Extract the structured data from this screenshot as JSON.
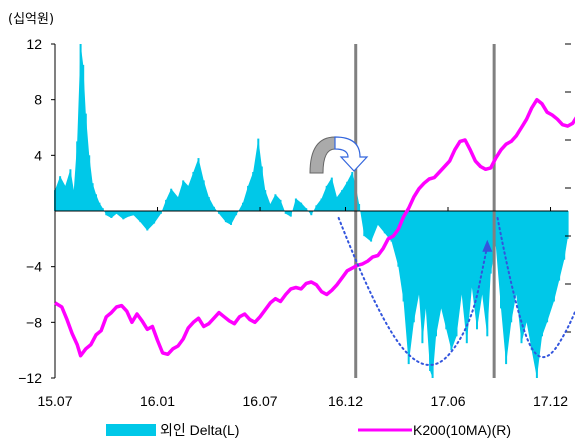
{
  "unit_label": "(십억원)",
  "colors": {
    "delta_fill": "#00C8E8",
    "k200_line": "#FF00FF",
    "event_line": "#808080",
    "dotted_curve": "#3355DD",
    "arrow_fill": "#AAAAAA",
    "arrow_outline": "#3366DD"
  },
  "chart_data": {
    "type": "bar+line",
    "x_tick_labels": [
      "15.07",
      "16.01",
      "16.07",
      "16.12",
      "17.06",
      "17.12"
    ],
    "x_tick_months": [
      0,
      6,
      12,
      17,
      23,
      29
    ],
    "xlim_months": [
      0,
      34
    ],
    "y_left": {
      "ticks": [
        12,
        8,
        4,
        -4,
        -8,
        -12
      ],
      "ylim": [
        -12,
        12
      ]
    },
    "y_right": {
      "ticks": 7,
      "labels": []
    },
    "legend_position": "bottom",
    "series": [
      {
        "name": "외인 Delta(L)",
        "kind": "bar",
        "axis": "left",
        "points": [
          [
            0.0,
            1.5
          ],
          [
            0.3,
            2.5
          ],
          [
            0.6,
            1.8
          ],
          [
            0.9,
            3.0
          ],
          [
            1.1,
            1.5
          ],
          [
            1.3,
            5.0
          ],
          [
            1.5,
            12.0
          ],
          [
            1.65,
            10.5
          ],
          [
            1.8,
            7.0
          ],
          [
            2.0,
            4.0
          ],
          [
            2.2,
            2.0
          ],
          [
            2.4,
            1.2
          ],
          [
            2.6,
            0.6
          ],
          [
            2.8,
            0.2
          ],
          [
            3.0,
            -0.3
          ],
          [
            3.3,
            -0.5
          ],
          [
            3.6,
            -0.2
          ],
          [
            4.0,
            -0.6
          ],
          [
            4.3,
            -0.4
          ],
          [
            4.6,
            -0.3
          ],
          [
            5.0,
            -0.8
          ],
          [
            5.4,
            -1.4
          ],
          [
            5.8,
            -0.9
          ],
          [
            6.2,
            -0.2
          ],
          [
            6.5,
            0.8
          ],
          [
            6.8,
            1.6
          ],
          [
            7.2,
            1.0
          ],
          [
            7.5,
            2.2
          ],
          [
            7.8,
            1.8
          ],
          [
            8.1,
            2.8
          ],
          [
            8.4,
            3.8
          ],
          [
            8.7,
            2.2
          ],
          [
            9.0,
            1.0
          ],
          [
            9.3,
            0.3
          ],
          [
            9.6,
            -0.2
          ],
          [
            10.0,
            -0.8
          ],
          [
            10.3,
            -1.0
          ],
          [
            10.6,
            -0.3
          ],
          [
            11.0,
            0.6
          ],
          [
            11.3,
            1.8
          ],
          [
            11.6,
            2.8
          ],
          [
            11.9,
            5.2
          ],
          [
            12.1,
            3.2
          ],
          [
            12.3,
            1.5
          ],
          [
            12.6,
            0.5
          ],
          [
            12.9,
            1.2
          ],
          [
            13.2,
            0.8
          ],
          [
            13.5,
            -0.2
          ],
          [
            13.8,
            -0.4
          ],
          [
            14.1,
            0.9
          ],
          [
            14.4,
            0.6
          ],
          [
            14.7,
            0.2
          ],
          [
            15.0,
            -0.3
          ],
          [
            15.3,
            0.4
          ],
          [
            15.6,
            0.9
          ],
          [
            15.9,
            1.8
          ],
          [
            16.2,
            2.4
          ],
          [
            16.5,
            1.0
          ],
          [
            16.8,
            1.5
          ],
          [
            17.1,
            2.1
          ],
          [
            17.4,
            2.8
          ],
          [
            17.6,
            1.8
          ],
          [
            17.8,
            0.5
          ],
          [
            18.1,
            -1.8
          ],
          [
            18.5,
            -2.2
          ],
          [
            18.9,
            -1.0
          ],
          [
            19.3,
            -1.6
          ],
          [
            19.7,
            -2.2
          ],
          [
            20.1,
            -4.0
          ],
          [
            20.4,
            -6.5
          ],
          [
            20.7,
            -11.0
          ],
          [
            21.0,
            -8.0
          ],
          [
            21.3,
            -6.0
          ],
          [
            21.5,
            -9.5
          ],
          [
            21.7,
            -7.0
          ],
          [
            21.95,
            -11.5
          ],
          [
            22.1,
            -12.0
          ],
          [
            22.3,
            -9.0
          ],
          [
            22.6,
            -7.0
          ],
          [
            22.9,
            -8.5
          ],
          [
            23.2,
            -10.0
          ],
          [
            23.5,
            -9.0
          ],
          [
            23.8,
            -6.0
          ],
          [
            24.1,
            -9.5
          ],
          [
            24.4,
            -5.5
          ],
          [
            24.7,
            -8.5
          ],
          [
            25.0,
            -6.0
          ],
          [
            25.3,
            -9.0
          ],
          [
            25.5,
            -4.5
          ],
          [
            25.8,
            -2.5
          ],
          [
            26.1,
            -7.0
          ],
          [
            26.4,
            -11.0
          ],
          [
            26.7,
            -8.0
          ],
          [
            27.0,
            -6.0
          ],
          [
            27.3,
            -9.5
          ],
          [
            27.6,
            -8.0
          ],
          [
            27.9,
            -10.0
          ],
          [
            28.2,
            -12.0
          ],
          [
            28.5,
            -9.0
          ],
          [
            28.8,
            -8.0
          ],
          [
            29.2,
            -6.5
          ],
          [
            29.5,
            -5.0
          ],
          [
            29.8,
            -3.5
          ],
          [
            30.0,
            -2.0
          ]
        ]
      },
      {
        "name": "K200(10MA)(R)",
        "kind": "line",
        "axis": "right",
        "points": [
          [
            0.0,
            -6.6
          ],
          [
            0.4,
            -6.9
          ],
          [
            0.7,
            -7.8
          ],
          [
            1.0,
            -8.8
          ],
          [
            1.3,
            -9.6
          ],
          [
            1.5,
            -10.4
          ],
          [
            1.8,
            -9.9
          ],
          [
            2.1,
            -9.6
          ],
          [
            2.4,
            -8.9
          ],
          [
            2.7,
            -8.6
          ],
          [
            3.0,
            -7.6
          ],
          [
            3.3,
            -7.3
          ],
          [
            3.6,
            -6.9
          ],
          [
            3.9,
            -6.8
          ],
          [
            4.2,
            -7.2
          ],
          [
            4.5,
            -8.0
          ],
          [
            4.8,
            -7.4
          ],
          [
            5.1,
            -7.9
          ],
          [
            5.4,
            -8.5
          ],
          [
            5.7,
            -8.3
          ],
          [
            6.0,
            -9.3
          ],
          [
            6.3,
            -10.2
          ],
          [
            6.6,
            -10.3
          ],
          [
            6.9,
            -9.9
          ],
          [
            7.2,
            -9.7
          ],
          [
            7.5,
            -9.2
          ],
          [
            7.8,
            -8.4
          ],
          [
            8.1,
            -8.0
          ],
          [
            8.4,
            -7.7
          ],
          [
            8.7,
            -8.3
          ],
          [
            9.0,
            -8.1
          ],
          [
            9.3,
            -7.7
          ],
          [
            9.6,
            -7.3
          ],
          [
            9.9,
            -7.6
          ],
          [
            10.2,
            -7.9
          ],
          [
            10.5,
            -8.1
          ],
          [
            10.8,
            -7.6
          ],
          [
            11.1,
            -7.4
          ],
          [
            11.4,
            -7.8
          ],
          [
            11.7,
            -8.0
          ],
          [
            12.0,
            -7.6
          ],
          [
            12.3,
            -7.1
          ],
          [
            12.6,
            -6.6
          ],
          [
            12.9,
            -6.3
          ],
          [
            13.2,
            -6.5
          ],
          [
            13.5,
            -6.0
          ],
          [
            13.8,
            -5.6
          ],
          [
            14.1,
            -5.5
          ],
          [
            14.4,
            -5.6
          ],
          [
            14.7,
            -5.2
          ],
          [
            15.0,
            -5.1
          ],
          [
            15.3,
            -5.3
          ],
          [
            15.6,
            -5.8
          ],
          [
            15.9,
            -6.0
          ],
          [
            16.2,
            -5.7
          ],
          [
            16.5,
            -5.3
          ],
          [
            16.8,
            -4.8
          ],
          [
            17.1,
            -4.3
          ],
          [
            17.4,
            -4.1
          ],
          [
            17.7,
            -3.9
          ],
          [
            18.0,
            -3.8
          ],
          [
            18.3,
            -3.6
          ],
          [
            18.6,
            -3.3
          ],
          [
            18.9,
            -3.2
          ],
          [
            19.2,
            -2.7
          ],
          [
            19.5,
            -2.0
          ],
          [
            19.8,
            -1.8
          ],
          [
            20.1,
            -1.3
          ],
          [
            20.4,
            -0.4
          ],
          [
            20.7,
            0.2
          ],
          [
            21.0,
            1.0
          ],
          [
            21.3,
            1.6
          ],
          [
            21.6,
            2.0
          ],
          [
            21.9,
            2.3
          ],
          [
            22.2,
            2.4
          ],
          [
            22.5,
            2.8
          ],
          [
            22.8,
            3.2
          ],
          [
            23.1,
            3.6
          ],
          [
            23.4,
            4.4
          ],
          [
            23.7,
            5.0
          ],
          [
            24.0,
            5.1
          ],
          [
            24.3,
            4.4
          ],
          [
            24.6,
            3.6
          ],
          [
            24.9,
            3.2
          ],
          [
            25.2,
            3.0
          ],
          [
            25.5,
            3.1
          ],
          [
            25.8,
            3.8
          ],
          [
            26.1,
            4.4
          ],
          [
            26.4,
            4.8
          ],
          [
            26.7,
            5.0
          ],
          [
            27.0,
            5.4
          ],
          [
            27.3,
            6.0
          ],
          [
            27.6,
            6.6
          ],
          [
            27.9,
            7.4
          ],
          [
            28.2,
            8.0
          ],
          [
            28.5,
            7.7
          ],
          [
            28.8,
            7.1
          ],
          [
            29.1,
            6.9
          ],
          [
            29.4,
            6.6
          ],
          [
            29.7,
            6.2
          ],
          [
            30.0,
            6.1
          ],
          [
            30.3,
            6.3
          ],
          [
            30.6,
            6.9
          ],
          [
            30.9,
            7.2
          ],
          [
            31.2,
            7.4
          ]
        ]
      }
    ],
    "event_lines_months": [
      17.6,
      25.7
    ],
    "dotted_curves": [
      {
        "points": [
          [
            16.6,
            -0.5
          ],
          [
            19.0,
            -8.0
          ],
          [
            21.9,
            -12.0
          ],
          [
            24.3,
            -8.5
          ],
          [
            25.3,
            -2.5
          ]
        ]
      },
      {
        "points": [
          [
            25.9,
            -0.5
          ],
          [
            27.0,
            -7.5
          ],
          [
            28.5,
            -11.5
          ],
          [
            30.5,
            -7.5
          ],
          [
            31.8,
            -2.0
          ]
        ]
      }
    ]
  }
}
